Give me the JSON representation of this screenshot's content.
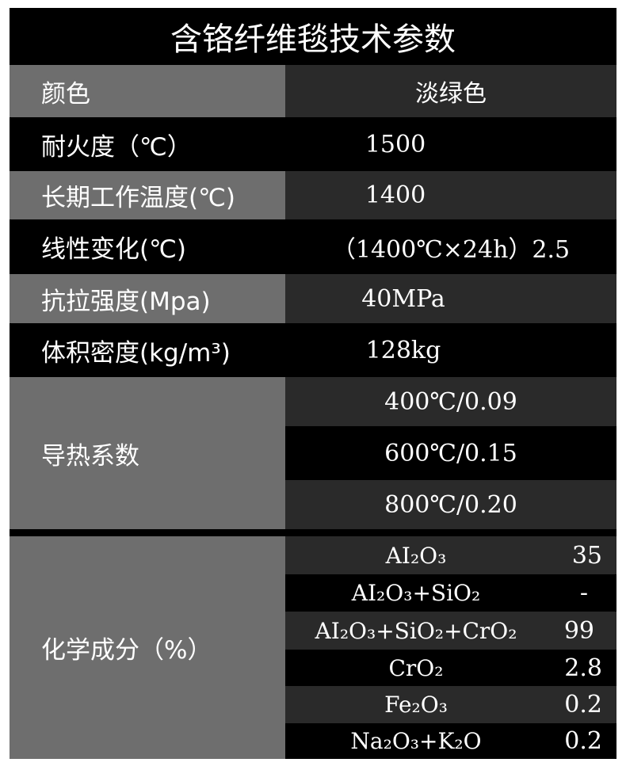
{
  "title": "含铬纤维毯技术参数",
  "rows": [
    {
      "label": "颜色",
      "value": "淡绿色"
    },
    {
      "label": "耐火度（℃）",
      "value": "1500"
    },
    {
      "label": "长期工作温度(℃)",
      "value": "1400"
    },
    {
      "label": "线性变化(℃)",
      "value": "（1400℃×24h）2.5"
    },
    {
      "label": "抗拉强度(Mpa)",
      "value": "40MPa"
    },
    {
      "label": "体积密度(kg/m³)",
      "value": "128kg"
    }
  ],
  "thermal": {
    "label": "导热系数",
    "values": [
      "400℃/0.09",
      "600℃/0.15",
      "800℃/0.20"
    ]
  },
  "chemical": {
    "label": "化学成分（%）",
    "items": [
      {
        "formula": "AI₂O₃",
        "value": "35"
      },
      {
        "formula": "AI₂O₃+SiO₂",
        "value": "-"
      },
      {
        "formula": "AI₂O₃+SiO₂+CrO₂",
        "value": "99"
      },
      {
        "formula": "CrO₂",
        "value": "2.8"
      },
      {
        "formula": "Fe₂O₃",
        "value": "0.2"
      },
      {
        "formula": "Na₂O₃+K₂O",
        "value": "0.2"
      }
    ]
  },
  "colors": {
    "label_bg": "#6e6e6e",
    "value_bg_dark": "#2a2a2a",
    "value_bg_black": "#000000",
    "text": "#ffffff"
  }
}
